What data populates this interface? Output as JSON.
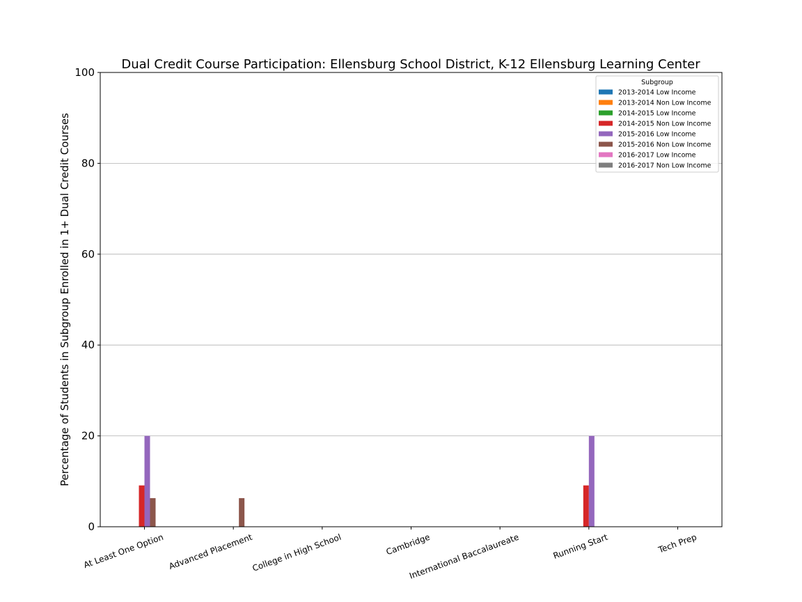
{
  "chart_data": {
    "type": "bar",
    "title": "Dual Credit Course Participation: Ellensburg School District, K-12 Ellensburg Learning Center",
    "xlabel": "",
    "ylabel": "Percentage of Students in Subgroup Enrolled in 1+ Dual Credit Courses",
    "ylim": [
      0,
      100
    ],
    "yticks": [
      0,
      20,
      40,
      60,
      80,
      100
    ],
    "grid": "y",
    "legend_title": "Subgroup",
    "legend_position": "top-right",
    "categories": [
      "At Least One Option",
      "Advanced Placement",
      "College in High School",
      "Cambridge",
      "International Baccalaureate",
      "Running Start",
      "Tech Prep"
    ],
    "series": [
      {
        "name": "2013-2014 Low Income",
        "color": "#1f77b4",
        "values": [
          0,
          0,
          0,
          0,
          0,
          0,
          0
        ]
      },
      {
        "name": "2013-2014 Non Low Income",
        "color": "#ff7f0e",
        "values": [
          0,
          0,
          0,
          0,
          0,
          0,
          0
        ]
      },
      {
        "name": "2014-2015 Low Income",
        "color": "#2ca02c",
        "values": [
          0,
          0,
          0,
          0,
          0,
          0,
          0
        ]
      },
      {
        "name": "2014-2015 Non Low Income",
        "color": "#d62728",
        "values": [
          9.1,
          0,
          0,
          0,
          0,
          9.1,
          0
        ]
      },
      {
        "name": "2015-2016 Low Income",
        "color": "#9467bd",
        "values": [
          20,
          0,
          0,
          0,
          0,
          20,
          0
        ]
      },
      {
        "name": "2015-2016 Non Low Income",
        "color": "#8c564b",
        "values": [
          6.3,
          6.3,
          0,
          0,
          0,
          0,
          0
        ]
      },
      {
        "name": "2016-2017 Low Income",
        "color": "#e377c2",
        "values": [
          0,
          0,
          0,
          0,
          0,
          0,
          0
        ]
      },
      {
        "name": "2016-2017 Non Low Income",
        "color": "#7f7f7f",
        "values": [
          0,
          0,
          0,
          0,
          0,
          0,
          0
        ]
      }
    ]
  }
}
